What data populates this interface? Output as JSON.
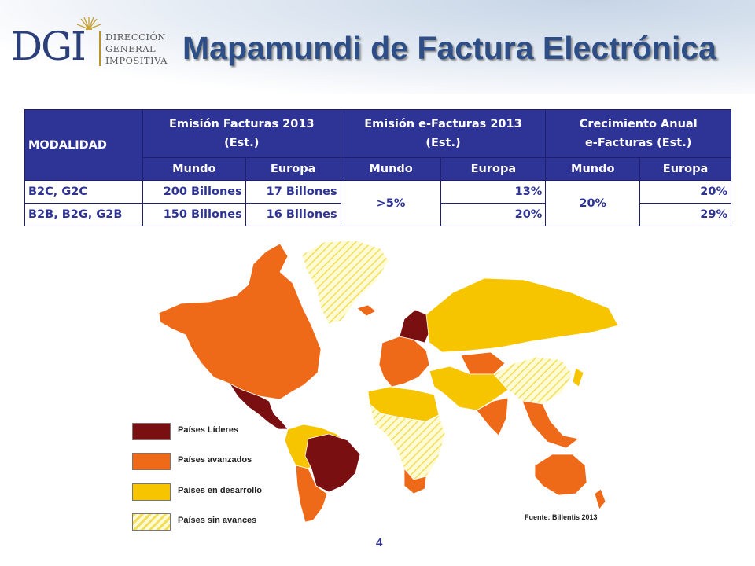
{
  "header": {
    "logo_text": "DGI",
    "logo_lines": [
      "DIRECCIÓN",
      "GENERAL",
      "IMPOSITIVA"
    ],
    "title": "Mapamundi de Factura Electrónica"
  },
  "table": {
    "modalidad": "MODALIDAD",
    "group_headers": [
      {
        "line1": "Emisión Facturas 2013",
        "line2": "(Est.)"
      },
      {
        "line1": "Emisión e-Facturas 2013",
        "line2": "(Est.)"
      },
      {
        "line1": "Crecimiento Anual",
        "line2": "e-Facturas (Est.)"
      }
    ],
    "sub_headers": [
      "Mundo",
      "Europa",
      "Mundo",
      "Europa",
      "Mundo",
      "Europa"
    ],
    "rows": [
      {
        "label": "B2C, G2C",
        "f_mundo": "200 Billones",
        "f_europa": "17 Billones",
        "e_europa": "13%",
        "c_europa": "20%"
      },
      {
        "label": "B2B, B2G, G2B",
        "f_mundo": "150 Billones",
        "f_europa": "16 Billones",
        "e_europa": "20%",
        "c_europa": "29%"
      }
    ],
    "e_mundo_merged": ">5%",
    "c_mundo_merged": "20%"
  },
  "legend": [
    {
      "label": "Países Líderes",
      "color": "#7a0f12",
      "icon": "dark-red-swatch"
    },
    {
      "label": "Países avanzados",
      "color": "#ef6a18",
      "icon": "orange-swatch"
    },
    {
      "label": "Países en desarrollo",
      "color": "#f6c500",
      "icon": "yellow-swatch"
    },
    {
      "label": "Países sin avances",
      "color": "#fff7b8",
      "icon": "hatched-swatch"
    }
  ],
  "source": "Fuente: Billentis 2013",
  "page_number": "4"
}
